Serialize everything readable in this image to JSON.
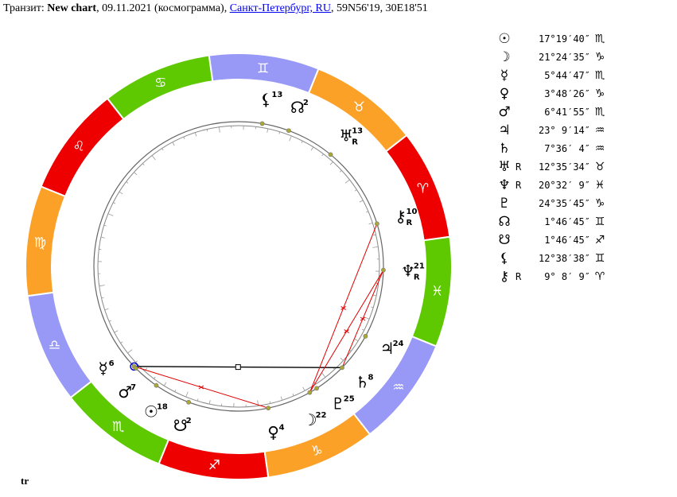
{
  "header": {
    "prefix": "Транзит: ",
    "chart_name": "New chart",
    "date": ", 09.11.2021 (космограмма), ",
    "location": "Санкт-Петербург, RU",
    "coords": ", 59N56'19, 30E18'51"
  },
  "footer": "tr",
  "colors": {
    "fire": "#ee0000",
    "earth": "#fca128",
    "air": "#9898f7",
    "water": "#5ec800",
    "aspect_red": "#e00000",
    "aspect_black": "#000000",
    "planet_dot": "#aaa833",
    "mercury_ring": "#0000cc"
  },
  "zodiac": [
    {
      "name": "aries",
      "glyph": "♈",
      "element": "fire"
    },
    {
      "name": "taurus",
      "glyph": "♉",
      "element": "earth"
    },
    {
      "name": "gemini",
      "glyph": "♊",
      "element": "air"
    },
    {
      "name": "cancer",
      "glyph": "♋",
      "element": "water"
    },
    {
      "name": "leo",
      "glyph": "♌",
      "element": "fire"
    },
    {
      "name": "virgo",
      "glyph": "♍",
      "element": "earth"
    },
    {
      "name": "libra",
      "glyph": "♎",
      "element": "air"
    },
    {
      "name": "scorpio",
      "glyph": "♏",
      "element": "water"
    },
    {
      "name": "sagittarius",
      "glyph": "♐",
      "element": "fire"
    },
    {
      "name": "capricorn",
      "glyph": "♑",
      "element": "earth"
    },
    {
      "name": "aquarius",
      "glyph": "♒",
      "element": "air"
    },
    {
      "name": "pisces",
      "glyph": "♓",
      "element": "water"
    }
  ],
  "planets": [
    {
      "id": "sun",
      "symbol": "☉",
      "position": "17°19′40″",
      "sign": "♏",
      "retro": "",
      "lon": 227.33,
      "label_deg": "18"
    },
    {
      "id": "moon",
      "symbol": "☽",
      "position": "21°24′35″",
      "sign": "♑",
      "retro": "",
      "lon": 291.41,
      "label_deg": "22"
    },
    {
      "id": "mercury",
      "symbol": "☿",
      "position": "5°44′47″",
      "sign": "♏",
      "retro": "",
      "lon": 215.75,
      "label_deg": "6"
    },
    {
      "id": "venus",
      "symbol": "♀",
      "position": "3°48′26″",
      "sign": "♑",
      "retro": "",
      "lon": 273.81,
      "label_deg": "4"
    },
    {
      "id": "mars",
      "symbol": "♂",
      "position": "6°41′55″",
      "sign": "♏",
      "retro": "",
      "lon": 216.7,
      "label_deg": "7"
    },
    {
      "id": "jupiter",
      "symbol": "♃",
      "position": "23° 9′14″",
      "sign": "♒",
      "retro": "",
      "lon": 323.15,
      "label_deg": "24"
    },
    {
      "id": "saturn",
      "symbol": "♄",
      "position": "7°36′ 4″",
      "sign": "♒",
      "retro": "",
      "lon": 307.6,
      "label_deg": "8"
    },
    {
      "id": "uranus",
      "symbol": "♅",
      "position": "12°35′34″",
      "sign": "♉",
      "retro": "R",
      "lon": 42.59,
      "label_deg": "13"
    },
    {
      "id": "neptune",
      "symbol": "♆",
      "position": "20°32′ 9″",
      "sign": "♓",
      "retro": "R",
      "lon": 350.54,
      "label_deg": "21"
    },
    {
      "id": "pluto",
      "symbol": "♇",
      "position": "24°35′45″",
      "sign": "♑",
      "retro": "",
      "lon": 294.6,
      "label_deg": "25"
    },
    {
      "id": "north-node",
      "symbol": "☊",
      "position": "1°46′45″",
      "sign": "♊",
      "retro": "",
      "lon": 61.78,
      "label_deg": "2"
    },
    {
      "id": "south-node",
      "symbol": "☋",
      "position": "1°46′45″",
      "sign": "♐",
      "retro": "",
      "lon": 241.78,
      "label_deg": "2"
    },
    {
      "id": "lilith",
      "symbol": "⚸",
      "position": "12°38′38″",
      "sign": "♊",
      "retro": "",
      "lon": 72.64,
      "label_deg": "13"
    },
    {
      "id": "chiron",
      "symbol": "⚷",
      "position": "9° 8′ 9″",
      "sign": "♈",
      "retro": "R",
      "lon": 9.14,
      "label_deg": "10"
    }
  ],
  "aspects": [
    {
      "from": "saturn",
      "to": "mercury",
      "color": "aspect_black"
    },
    {
      "from": "moon",
      "to": "chiron",
      "color": "aspect_red"
    },
    {
      "from": "moon",
      "to": "neptune",
      "color": "aspect_red"
    },
    {
      "from": "saturn",
      "to": "neptune",
      "color": "aspect_red"
    },
    {
      "from": "venus",
      "to": "mercury",
      "color": "aspect_red"
    }
  ]
}
